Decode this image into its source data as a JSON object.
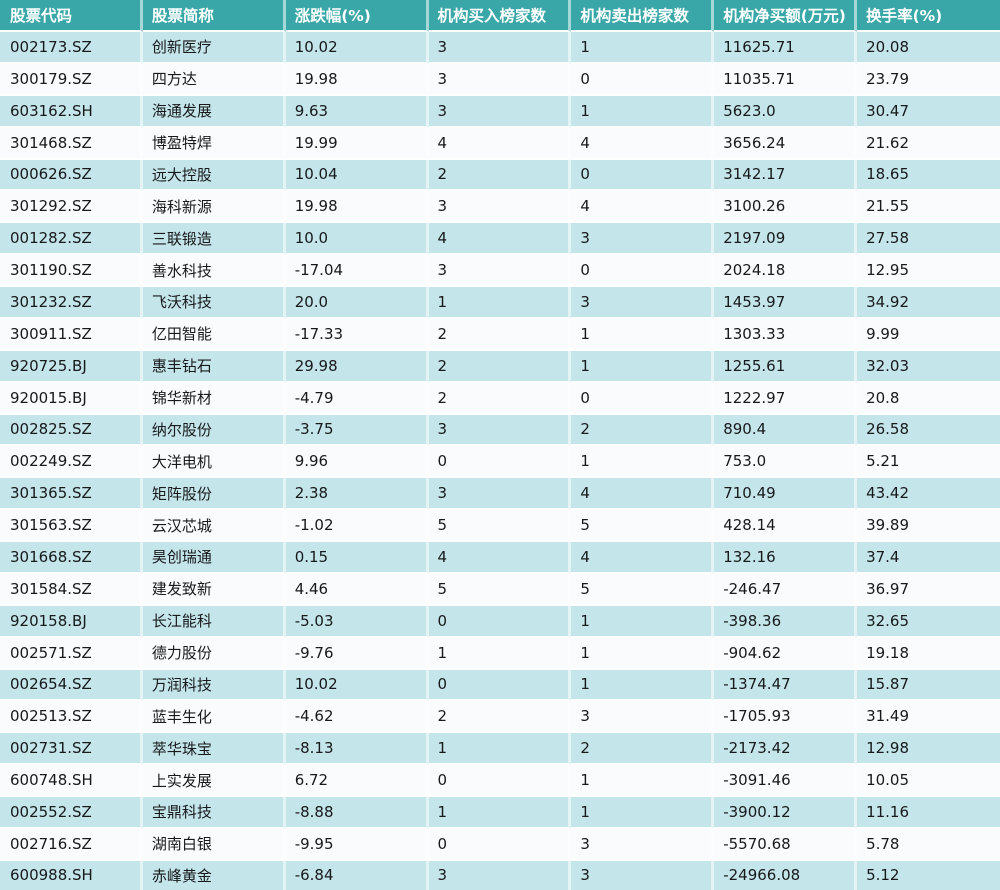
{
  "colors": {
    "header_bg": "#39A7A7",
    "header_text": "#FFFFFF",
    "row_stripe": "#C4E5EA",
    "row_plain": "#FAFBFC",
    "cell_text": "#17191B",
    "grid_line": "#FFFFFF"
  },
  "chart_data": {
    "type": "table",
    "columns": [
      "股票代码",
      "股票简称",
      "涨跌幅(%)",
      "机构买入榜家数",
      "机构卖出榜家数",
      "机构净买额(万元)",
      "换手率(%)"
    ],
    "rows": [
      [
        "002173.SZ",
        "创新医疗",
        "10.02",
        "3",
        "1",
        "11625.71",
        "20.08"
      ],
      [
        "300179.SZ",
        "四方达",
        "19.98",
        "3",
        "0",
        "11035.71",
        "23.79"
      ],
      [
        "603162.SH",
        "海通发展",
        "9.63",
        "3",
        "1",
        "5623.0",
        "30.47"
      ],
      [
        "301468.SZ",
        "博盈特焊",
        "19.99",
        "4",
        "4",
        "3656.24",
        "21.62"
      ],
      [
        "000626.SZ",
        "远大控股",
        "10.04",
        "2",
        "0",
        "3142.17",
        "18.65"
      ],
      [
        "301292.SZ",
        "海科新源",
        "19.98",
        "3",
        "4",
        "3100.26",
        "21.55"
      ],
      [
        "001282.SZ",
        "三联锻造",
        "10.0",
        "4",
        "3",
        "2197.09",
        "27.58"
      ],
      [
        "301190.SZ",
        "善水科技",
        "-17.04",
        "3",
        "0",
        "2024.18",
        "12.95"
      ],
      [
        "301232.SZ",
        "飞沃科技",
        "20.0",
        "1",
        "3",
        "1453.97",
        "34.92"
      ],
      [
        "300911.SZ",
        "亿田智能",
        "-17.33",
        "2",
        "1",
        "1303.33",
        "9.99"
      ],
      [
        "920725.BJ",
        "惠丰钻石",
        "29.98",
        "2",
        "1",
        "1255.61",
        "32.03"
      ],
      [
        "920015.BJ",
        "锦华新材",
        "-4.79",
        "2",
        "0",
        "1222.97",
        "20.8"
      ],
      [
        "002825.SZ",
        "纳尔股份",
        "-3.75",
        "3",
        "2",
        "890.4",
        "26.58"
      ],
      [
        "002249.SZ",
        "大洋电机",
        "9.96",
        "0",
        "1",
        "753.0",
        "5.21"
      ],
      [
        "301365.SZ",
        "矩阵股份",
        "2.38",
        "3",
        "4",
        "710.49",
        "43.42"
      ],
      [
        "301563.SZ",
        "云汉芯城",
        "-1.02",
        "5",
        "5",
        "428.14",
        "39.89"
      ],
      [
        "301668.SZ",
        "昊创瑞通",
        "0.15",
        "4",
        "4",
        "132.16",
        "37.4"
      ],
      [
        "301584.SZ",
        "建发致新",
        "4.46",
        "5",
        "5",
        "-246.47",
        "36.97"
      ],
      [
        "920158.BJ",
        "长江能科",
        "-5.03",
        "0",
        "1",
        "-398.36",
        "32.65"
      ],
      [
        "002571.SZ",
        "德力股份",
        "-9.76",
        "1",
        "1",
        "-904.62",
        "19.18"
      ],
      [
        "002654.SZ",
        "万润科技",
        "10.02",
        "0",
        "1",
        "-1374.47",
        "15.87"
      ],
      [
        "002513.SZ",
        "蓝丰生化",
        "-4.62",
        "2",
        "3",
        "-1705.93",
        "31.49"
      ],
      [
        "002731.SZ",
        "萃华珠宝",
        "-8.13",
        "1",
        "2",
        "-2173.42",
        "12.98"
      ],
      [
        "600748.SH",
        "上实发展",
        "6.72",
        "0",
        "1",
        "-3091.46",
        "10.05"
      ],
      [
        "002552.SZ",
        "宝鼎科技",
        "-8.88",
        "1",
        "1",
        "-3900.12",
        "11.16"
      ],
      [
        "002716.SZ",
        "湖南白银",
        "-9.95",
        "0",
        "3",
        "-5570.68",
        "5.78"
      ],
      [
        "600988.SH",
        "赤峰黄金",
        "-6.84",
        "3",
        "3",
        "-24966.08",
        "5.12"
      ]
    ]
  }
}
